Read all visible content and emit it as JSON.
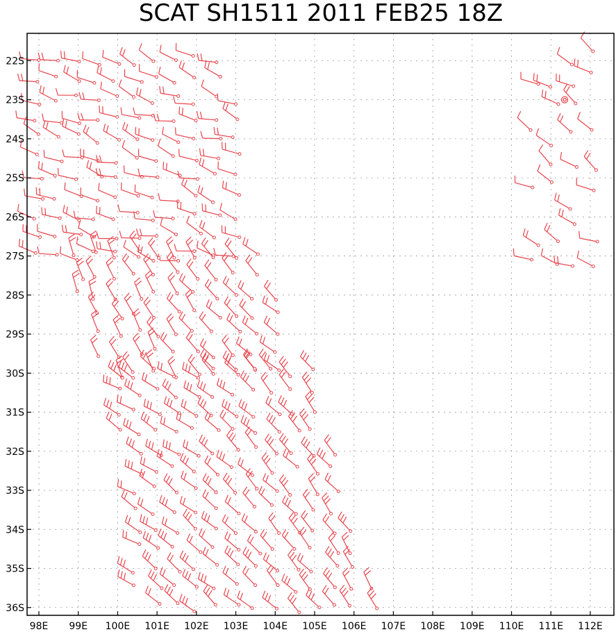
{
  "title": "SCAT SH1511 2011 FEB25 18Z",
  "colors": {
    "barb": "#e8434b",
    "grid": "#999999",
    "frame": "#000000"
  },
  "map": {
    "lon_range": [
      97.7,
      112.6
    ],
    "lat_range": [
      -36.2,
      -21.3
    ],
    "lon_ticks": [
      98,
      99,
      100,
      101,
      102,
      103,
      104,
      105,
      106,
      107,
      108,
      109,
      110,
      111,
      112
    ],
    "lon_labels": [
      "98E",
      "99E",
      "100E",
      "101E",
      "102E",
      "103E",
      "104E",
      "105E",
      "106E",
      "107E",
      "108E",
      "109E",
      "110E",
      "111E",
      "112E"
    ],
    "lat_ticks": [
      -22,
      -23,
      -24,
      -25,
      -26,
      -27,
      -28,
      -29,
      -30,
      -31,
      -32,
      -33,
      -34,
      -35,
      -36
    ],
    "lat_labels": [
      "22S",
      "23S",
      "24S",
      "25S",
      "26S",
      "27S",
      "28S",
      "29S",
      "30S",
      "31S",
      "32S",
      "33S",
      "34S",
      "35S",
      "36S"
    ],
    "grid": "dotted"
  },
  "wind_barbs": {
    "description_units": "lon/lat degrees, direction (deg, from), speed (kt)",
    "swaths": [
      {
        "name": "west",
        "lon": [
          98.0,
          103.3
        ],
        "lat": [
          -22.0,
          -27.0
        ],
        "dir": 290,
        "speed": 15
      },
      {
        "name": "west-mid",
        "lon": [
          98.5,
          104.3
        ],
        "lat": [
          -27.0,
          -30.0
        ],
        "dir": 340,
        "speed": 20
      },
      {
        "name": "south",
        "lon": [
          99.5,
          106.5
        ],
        "lat": [
          -30.0,
          -36.2
        ],
        "dir": 320,
        "speed": 25
      },
      {
        "name": "east",
        "lon": [
          110.6,
          112.1
        ],
        "lat": [
          -21.7,
          -27.3
        ],
        "dir": 300,
        "speed": 15
      }
    ],
    "calm_marker": {
      "lon": 111.35,
      "lat": -23.0
    }
  }
}
